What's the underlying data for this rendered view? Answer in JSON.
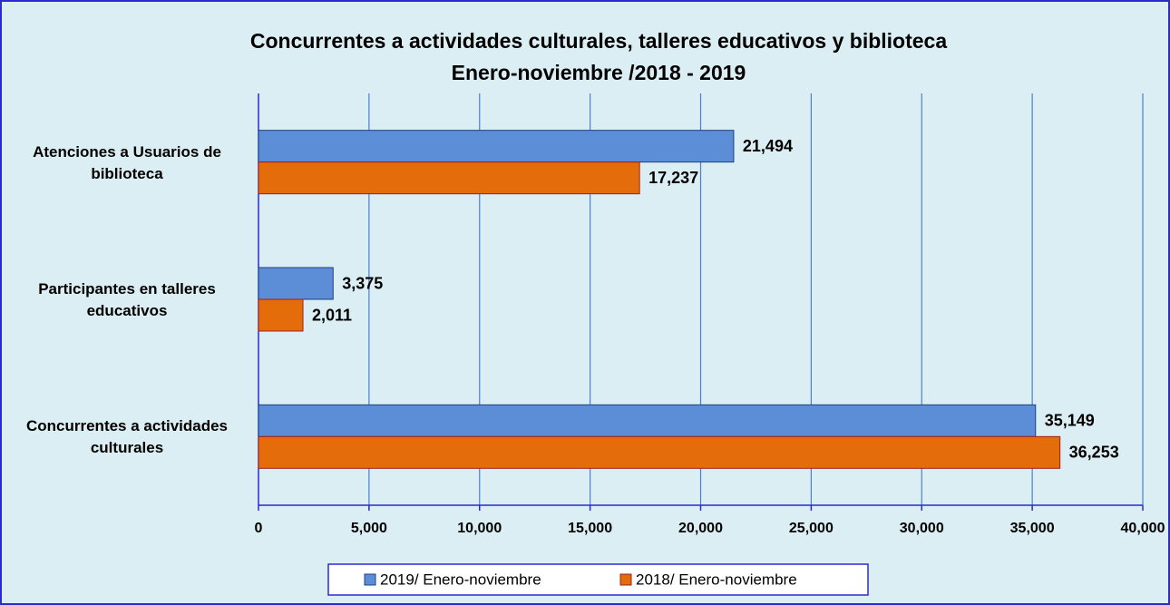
{
  "chart_data": {
    "type": "hbar",
    "title": "Concurrentes a actividades culturales, talleres educativos y biblioteca",
    "subtitle": "Enero-noviembre /2018 - 2019",
    "categories": [
      "Atenciones a Usuarios de biblioteca",
      "Participantes en talleres educativos",
      "Concurrentes a actividades culturales"
    ],
    "series": [
      {
        "name": "2019/ Enero-noviembre",
        "color": "#5b8ed6",
        "values": [
          21494,
          3375,
          35149
        ],
        "value_labels": [
          "21,494",
          "3,375",
          "35,149"
        ]
      },
      {
        "name": "2018/ Enero-noviembre",
        "color": "#e46c0a",
        "values": [
          17237,
          2011,
          36253
        ],
        "value_labels": [
          "17,237",
          "2,011",
          "36,253"
        ]
      }
    ],
    "xlim": [
      0,
      40000
    ],
    "xticks": [
      0,
      {
        "value": 5000,
        "label": "5,000"
      },
      {
        "value": 10000,
        "label": "10,000"
      },
      {
        "value": 15000,
        "label": "15,000"
      },
      {
        "value": 20000,
        "label": "20,000"
      },
      {
        "value": 25000,
        "label": "25,000"
      },
      {
        "value": 30000,
        "label": "30,000"
      },
      {
        "value": 35000,
        "label": "35,000"
      },
      {
        "value": 40000,
        "label": "40,000"
      }
    ],
    "grid": true,
    "legend": "bottom"
  }
}
